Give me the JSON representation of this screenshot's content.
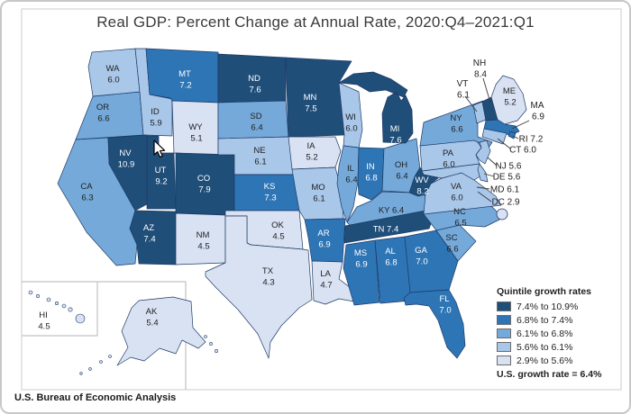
{
  "title": "Real GDP: Percent Change at Annual Rate, 2020:Q4–2021:Q1",
  "footer": "U.S. Bureau of Economic Analysis",
  "legend": {
    "title": "Quintile growth rates",
    "items": [
      {
        "label": "7.4% to 10.9%",
        "color": "#1F4E79"
      },
      {
        "label": "6.8% to 7.4%",
        "color": "#2E75B6"
      },
      {
        "label": "6.1% to 6.8%",
        "color": "#74A9DA"
      },
      {
        "label": "5.6% to 6.1%",
        "color": "#A9C7E9"
      },
      {
        "label": "2.9% to 5.6%",
        "color": "#D9E2F3"
      }
    ],
    "note": "U.S. growth rate = 6.4%"
  },
  "map": {
    "border_color": "#1E3A66",
    "inset_line_color": "#c2c2c2",
    "leader_line_color": "#3a3a3a",
    "label_dark": "#222222",
    "label_light": "#FFFFFF",
    "states": [
      {
        "abbr": "CA",
        "value": "6.3",
        "quintile": 3
      },
      {
        "abbr": "OR",
        "value": "6.6",
        "quintile": 3
      },
      {
        "abbr": "WA",
        "value": "6.0",
        "quintile": 4
      },
      {
        "abbr": "ID",
        "value": "5.9",
        "quintile": 4
      },
      {
        "abbr": "MT",
        "value": "7.2",
        "quintile": 2
      },
      {
        "abbr": "WY",
        "value": "5.1",
        "quintile": 5
      },
      {
        "abbr": "NV",
        "value": "10.9",
        "quintile": 1
      },
      {
        "abbr": "UT",
        "value": "9.2",
        "quintile": 1
      },
      {
        "abbr": "CO",
        "value": "7.9",
        "quintile": 1
      },
      {
        "abbr": "AZ",
        "value": "7.4",
        "quintile": 1
      },
      {
        "abbr": "NM",
        "value": "4.5",
        "quintile": 5
      },
      {
        "abbr": "ND",
        "value": "7.6",
        "quintile": 1
      },
      {
        "abbr": "SD",
        "value": "6.4",
        "quintile": 3
      },
      {
        "abbr": "NE",
        "value": "6.1",
        "quintile": 4
      },
      {
        "abbr": "KS",
        "value": "7.3",
        "quintile": 2
      },
      {
        "abbr": "OK",
        "value": "4.5",
        "quintile": 5
      },
      {
        "abbr": "TX",
        "value": "4.3",
        "quintile": 5
      },
      {
        "abbr": "MN",
        "value": "7.5",
        "quintile": 1
      },
      {
        "abbr": "IA",
        "value": "5.2",
        "quintile": 5
      },
      {
        "abbr": "MO",
        "value": "6.1",
        "quintile": 4
      },
      {
        "abbr": "AR",
        "value": "6.9",
        "quintile": 2
      },
      {
        "abbr": "LA",
        "value": "4.7",
        "quintile": 5
      },
      {
        "abbr": "WI",
        "value": "6.0",
        "quintile": 4
      },
      {
        "abbr": "IL",
        "value": "6.4",
        "quintile": 3
      },
      {
        "abbr": "IN",
        "value": "6.8",
        "quintile": 2
      },
      {
        "abbr": "OH",
        "value": "6.4",
        "quintile": 3
      },
      {
        "abbr": "MI",
        "value": "7.6",
        "quintile": 1
      },
      {
        "abbr": "KY",
        "value": "6.4",
        "quintile": 3
      },
      {
        "abbr": "TN",
        "value": "7.4",
        "quintile": 1
      },
      {
        "abbr": "MS",
        "value": "6.9",
        "quintile": 2
      },
      {
        "abbr": "AL",
        "value": "6.8",
        "quintile": 2
      },
      {
        "abbr": "GA",
        "value": "7.0",
        "quintile": 2
      },
      {
        "abbr": "SC",
        "value": "6.6",
        "quintile": 3
      },
      {
        "abbr": "NC",
        "value": "6.5",
        "quintile": 3
      },
      {
        "abbr": "FL",
        "value": "7.0",
        "quintile": 2
      },
      {
        "abbr": "VA",
        "value": "6.0",
        "quintile": 4
      },
      {
        "abbr": "WV",
        "value": "8.2",
        "quintile": 1
      },
      {
        "abbr": "MD",
        "value": "6.1",
        "quintile": 4
      },
      {
        "abbr": "PA",
        "value": "6.0",
        "quintile": 4
      },
      {
        "abbr": "NY",
        "value": "6.6",
        "quintile": 3
      },
      {
        "abbr": "NJ",
        "value": "5.6",
        "quintile": 4
      },
      {
        "abbr": "DE",
        "value": "5.6",
        "quintile": 4
      },
      {
        "abbr": "VT",
        "value": "6.1",
        "quintile": 4
      },
      {
        "abbr": "NH",
        "value": "8.4",
        "quintile": 1
      },
      {
        "abbr": "ME",
        "value": "5.2",
        "quintile": 5
      },
      {
        "abbr": "MA",
        "value": "6.9",
        "quintile": 2
      },
      {
        "abbr": "RI",
        "value": "7.2",
        "quintile": 2
      },
      {
        "abbr": "CT",
        "value": "6.0",
        "quintile": 4
      },
      {
        "abbr": "DC",
        "value": "2.9",
        "quintile": 5
      },
      {
        "abbr": "AK",
        "value": "5.4",
        "quintile": 5
      },
      {
        "abbr": "HI",
        "value": "4.5",
        "quintile": 5
      }
    ]
  }
}
